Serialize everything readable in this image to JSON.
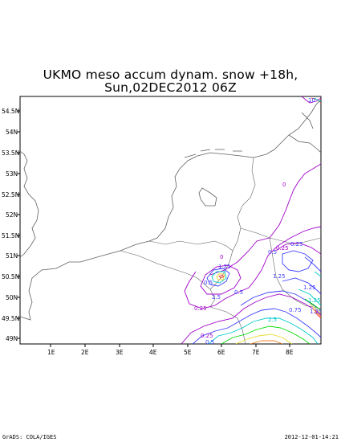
{
  "title": {
    "line1": "UKMO meso accum dynam. snow +18h,",
    "line2": "Sun,02DEC2012 06Z"
  },
  "axes": {
    "lat_labels": [
      "54.5N",
      "54N",
      "53.5N",
      "53N",
      "52.5N",
      "52N",
      "51.5N",
      "51N",
      "50.5N",
      "50N",
      "49.5N",
      "49N"
    ],
    "lon_labels": [
      "1E",
      "2E",
      "3E",
      "4E",
      "5E",
      "6E",
      "7E",
      "8E"
    ]
  },
  "contour_labels": [
    "0",
    "0.25",
    "0",
    "0.25",
    "1.25",
    "0.5",
    "0.5",
    "1.25",
    "0.25",
    "0.5",
    "2.5",
    "1.25",
    "0.75",
    "1.25",
    "1.25",
    "0.25",
    "0.5",
    "2.5",
    "10"
  ],
  "footer": {
    "left": "GrADS: COLA/IGES",
    "right": "2012-12-01-14:21"
  },
  "colors": {
    "contour_low": "#a000c8",
    "contour_mid": "#3c3cff",
    "contour_cyan": "#00c8c8",
    "contour_green": "#00dc00",
    "contour_yellow": "#e6dc32",
    "contour_orange": "#f08228",
    "contour_red": "#fa3c3c",
    "coast": "#606060"
  }
}
